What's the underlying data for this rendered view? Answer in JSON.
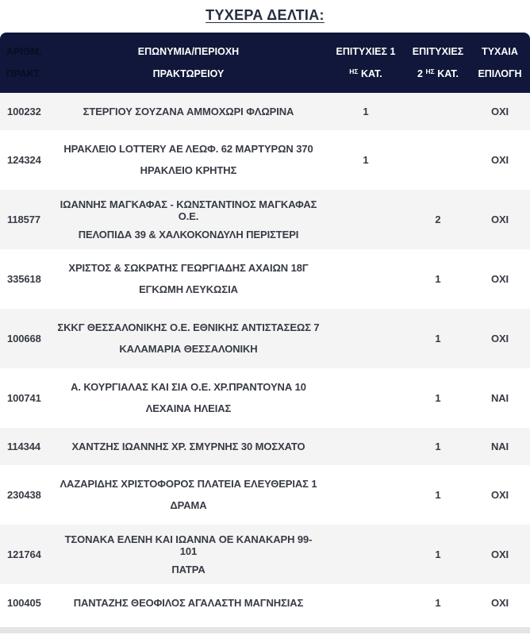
{
  "page": {
    "title": "ΤΥΧΕΡΑ ΔΕΛΤΙΑ:"
  },
  "colors": {
    "header_bg": "#10173A",
    "header_text": "#FFFFFF",
    "header_col1_text": "#070D23",
    "title_text": "#272C3F",
    "data_text": "#373B44",
    "row_gray": "#F4F4F5",
    "row_white": "#FFFFFF",
    "bottom_band": "#E5E5E6"
  },
  "table": {
    "headers": {
      "col1_line1": "ΑΡΙΘΜ.",
      "col1_line2": "ΠΡΑΚΤ.",
      "col2_line1": "ΕΠΩΝΥΜΙΑ/ΠΕΡΙΟΧΗ",
      "col2_line2": "ΠΡΑΚΤΩΡΕΙΟΥ",
      "col3_line1": "ΕΠΙΤΥΧΙΕΣ 1",
      "col3_line2_sup": "ΗΣ",
      "col3_line2_rest": " ΚΑΤ.",
      "col4_line1": "ΕΠΙΤΥΧΙΕΣ",
      "col4_line2_pre": "2 ",
      "col4_line2_sup": "ΗΣ",
      "col4_line2_rest": " ΚΑΤ.",
      "col5_line1": "ΤΥΧΑΙΑ",
      "col5_line2": "ΕΠΙΛΟΓΗ"
    },
    "rows": [
      {
        "num": "100232",
        "line1": "ΣΤΕΡΓΙΟΥ ΣΟΥΖΑΝΑ ΑΜΜΟΧΩΡΙ ΦΛΩΡΙΝΑ",
        "line2": "",
        "cat1": "1",
        "cat2": "",
        "random": "ΟΧΙ"
      },
      {
        "num": "124324",
        "line1": "ΗΡΑΚΛΕΙΟ LOTTERY ΑΕ ΛΕΩΦ. 62 ΜΑΡΤΥΡΩΝ 370",
        "line2": "ΗΡΑΚΛΕΙΟ ΚΡΗΤΗΣ",
        "cat1": "1",
        "cat2": "",
        "random": "ΟΧΙ"
      },
      {
        "num": "118577",
        "line1": "ΙΩΑΝΝΗΣ ΜΑΓΚΑΦΑΣ - ΚΩΝΣΤΑΝΤΙΝΟΣ ΜΑΓΚΑΦΑΣ Ο.Ε.",
        "line2": "ΠΕΛΟΠΙΔΑ 39 & ΧΑΛΚΟΚΟΝΔΥΛΗ ΠΕΡΙΣΤΕΡΙ",
        "cat1": "",
        "cat2": "2",
        "random": "ΟΧΙ"
      },
      {
        "num": "335618",
        "line1": "ΧΡΙΣΤΟΣ & ΣΩΚΡΑΤΗΣ ΓΕΩΡΓΙΑΔΗΣ ΑΧΑΙΩΝ 18Γ",
        "line2": "ΕΓΚΩΜΗ ΛΕΥΚΩΣΙΑ",
        "cat1": "",
        "cat2": "1",
        "random": "ΟΧΙ"
      },
      {
        "num": "100668",
        "line1": "ΣΚΚΓ ΘΕΣΣΑΛΟΝΙΚΗΣ Ο.Ε. ΕΘΝΙΚΗΣ ΑΝΤΙΣΤΑΣΕΩΣ 7",
        "line2": "ΚΑΛΑΜΑΡΙΑ ΘΕΣΣΑΛΟΝΙΚΗ",
        "cat1": "",
        "cat2": "1",
        "random": "ΟΧΙ"
      },
      {
        "num": "100741",
        "line1": "Α. ΚΟΥΡΓΙΑΛΑΣ ΚΑΙ ΣΙΑ Ο.Ε. ΧΡ.ΠΡΑΝΤΟΥΝΑ 10",
        "line2": "ΛΕΧΑΙΝΑ ΗΛΕΙΑΣ",
        "cat1": "",
        "cat2": "1",
        "random": "ΝΑΙ"
      },
      {
        "num": "114344",
        "line1": "ΧΑΝΤΖΗΣ ΙΩΑΝΝΗΣ ΧΡ. ΣΜΥΡΝΗΣ 30 ΜΟΣΧΑΤΟ",
        "line2": "",
        "cat1": "",
        "cat2": "1",
        "random": "ΝΑΙ"
      },
      {
        "num": "230438",
        "line1": "ΛΑΖΑΡΙΔΗΣ ΧΡΙΣΤΟΦΟΡΟΣ ΠΛΑΤΕΙΑ ΕΛΕΥΘΕΡΙΑΣ 1",
        "line2": "ΔΡΑΜΑ",
        "cat1": "",
        "cat2": "1",
        "random": "ΟΧΙ"
      },
      {
        "num": "121764",
        "line1": "ΤΣΟΝΑΚΑ ΕΛΕΝΗ ΚΑΙ ΙΩΑΝΝΑ ΟΕ ΚΑΝΑΚΑΡΗ 99-101",
        "line2": "ΠΑΤΡΑ",
        "cat1": "",
        "cat2": "1",
        "random": "ΟΧΙ"
      },
      {
        "num": "100405",
        "line1": "ΠΑΝΤΑΖΗΣ ΘΕΟΦΙΛΟΣ ΑΓΑΛΑΣΤΗ ΜΑΓΝΗΣΙΑΣ",
        "line2": "",
        "cat1": "",
        "cat2": "1",
        "random": "ΟΧΙ"
      }
    ]
  }
}
